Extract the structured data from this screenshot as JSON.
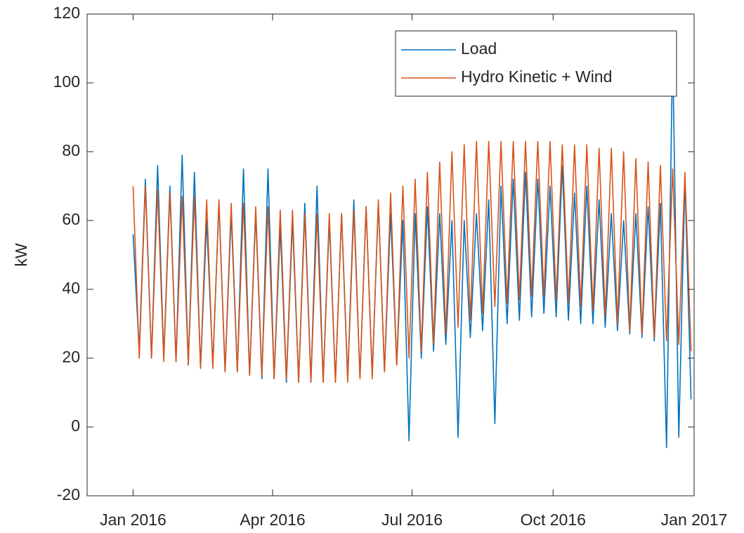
{
  "chart_data": {
    "type": "line",
    "ylabel": "kW",
    "xlim": [
      -30,
      366
    ],
    "xticks": [
      {
        "value": 0,
        "label": "Jan 2016"
      },
      {
        "value": 91,
        "label": "Apr 2016"
      },
      {
        "value": 182,
        "label": "Jul 2016"
      },
      {
        "value": 274,
        "label": "Oct 2016"
      },
      {
        "value": 366,
        "label": "Jan 2017"
      }
    ],
    "ylim": [
      -20,
      120
    ],
    "yticks": [
      -20,
      0,
      20,
      40,
      60,
      80,
      100,
      120
    ],
    "grid": false,
    "legend": "upper right",
    "x": [
      0,
      4,
      8,
      12,
      16,
      20,
      24,
      28,
      32,
      36,
      40,
      44,
      48,
      52,
      56,
      60,
      64,
      68,
      72,
      76,
      80,
      84,
      88,
      92,
      96,
      100,
      104,
      108,
      112,
      116,
      120,
      124,
      128,
      132,
      136,
      140,
      144,
      148,
      152,
      156,
      160,
      164,
      168,
      172,
      176,
      180,
      184,
      188,
      192,
      196,
      200,
      204,
      208,
      212,
      216,
      220,
      224,
      228,
      232,
      236,
      240,
      244,
      248,
      252,
      256,
      260,
      264,
      268,
      272,
      276,
      280,
      284,
      288,
      292,
      296,
      300,
      304,
      308,
      312,
      316,
      320,
      324,
      328,
      332,
      336,
      340,
      344,
      348,
      352,
      356,
      360,
      364
    ],
    "series": [
      {
        "name": "Load",
        "color": "#0072bd",
        "values": [
          56,
          22,
          72,
          20,
          76,
          20,
          70,
          19,
          79,
          18,
          74,
          17,
          60,
          18,
          65,
          16,
          62,
          16,
          75,
          15,
          62,
          14,
          75,
          14,
          58,
          13,
          60,
          13,
          65,
          13,
          70,
          13,
          60,
          13,
          62,
          14,
          66,
          14,
          64,
          15,
          65,
          16,
          62,
          18,
          60,
          -4,
          62,
          20,
          64,
          22,
          62,
          24,
          60,
          -3,
          60,
          26,
          62,
          28,
          66,
          1,
          70,
          30,
          72,
          31,
          74,
          32,
          72,
          33,
          70,
          32,
          76,
          31,
          68,
          30,
          70,
          30,
          66,
          29,
          62,
          28,
          60,
          27,
          62,
          26,
          64,
          25,
          65,
          -6,
          110,
          -3,
          72,
          8
        ]
      },
      {
        "name": "Hydro Kinetic + Wind",
        "color": "#d95319",
        "values": [
          70,
          20,
          70,
          20,
          69,
          19,
          68,
          19,
          67,
          18,
          67,
          17,
          66,
          17,
          66,
          16,
          65,
          16,
          65,
          15,
          64,
          15,
          64,
          14,
          63,
          14,
          63,
          13,
          62,
          13,
          62,
          13,
          62,
          13,
          62,
          13,
          63,
          14,
          64,
          14,
          66,
          16,
          68,
          18,
          70,
          20,
          72,
          22,
          74,
          24,
          77,
          27,
          80,
          29,
          82,
          31,
          83,
          33,
          83,
          35,
          83,
          36,
          83,
          37,
          83,
          38,
          83,
          38,
          83,
          37,
          82,
          36,
          82,
          35,
          82,
          34,
          81,
          32,
          81,
          30,
          80,
          28,
          78,
          27,
          77,
          26,
          76,
          25,
          75,
          24,
          74,
          22
        ]
      }
    ]
  }
}
